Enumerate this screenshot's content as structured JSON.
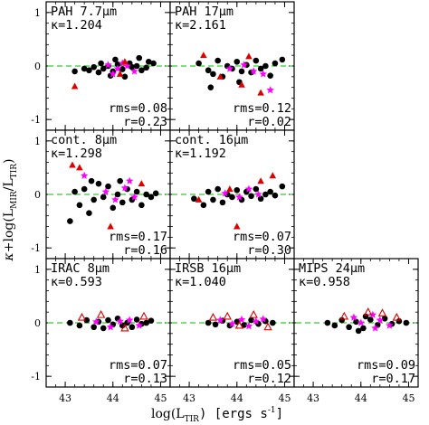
{
  "figure": {
    "ylabel_parts": {
      "kappa": "κ",
      "plus_log": "+log(L",
      "mir_sub": "MIR",
      "slash": "/L",
      "tir_sub": "TIR",
      "close": ")"
    },
    "xlabel_parts": {
      "log": "log(L",
      "tir_sub": "TIR",
      "units": ") [ergs s",
      "sup": "-1",
      "close": "]"
    }
  },
  "chart_data": [
    {
      "type": "scatter",
      "row": 0,
      "col": 0,
      "title": "PAH 7.7μm",
      "kappa_label": "κ=1.204",
      "rms_label": "rms=0.08",
      "r_label": "r=0.23",
      "xlim": [
        42.6,
        45.2
      ],
      "ylim": [
        -1.2,
        1.2
      ],
      "yticks": [
        1,
        0,
        -1
      ],
      "xticks": [
        43,
        44,
        45
      ],
      "reference_line": 0,
      "show_yticklabels": true,
      "show_xticklabels": false,
      "series": [
        {
          "name": "",
          "color": "#000000",
          "marker": "circle",
          "points": [
            [
              43.2,
              -0.1
            ],
            [
              43.4,
              -0.05
            ],
            [
              43.5,
              -0.08
            ],
            [
              43.6,
              -0.02
            ],
            [
              43.7,
              -0.12
            ],
            [
              43.8,
              -0.05
            ],
            [
              43.9,
              0.0
            ],
            [
              44.0,
              -0.1
            ],
            [
              44.1,
              0.03
            ],
            [
              44.2,
              -0.06
            ],
            [
              44.25,
              -0.2
            ],
            [
              44.35,
              0.05
            ],
            [
              44.4,
              -0.02
            ],
            [
              44.5,
              0.0
            ],
            [
              44.6,
              -0.08
            ],
            [
              44.7,
              -0.03
            ],
            [
              44.75,
              0.08
            ],
            [
              44.85,
              0.05
            ],
            [
              44.55,
              0.15
            ],
            [
              44.05,
              0.12
            ],
            [
              43.95,
              -0.18
            ],
            [
              43.75,
              0.05
            ]
          ]
        },
        {
          "name": "",
          "color": "#ff00ff",
          "marker": "star",
          "points": [
            [
              43.9,
              0.02
            ],
            [
              44.1,
              -0.05
            ],
            [
              44.3,
              0.0
            ],
            [
              44.2,
              0.05
            ],
            [
              44.45,
              -0.1
            ],
            [
              44.0,
              -0.15
            ]
          ]
        },
        {
          "name": "",
          "color": "#dd0000",
          "marker": "triangle",
          "points": [
            [
              43.2,
              -0.38
            ],
            [
              44.15,
              -0.15
            ],
            [
              44.25,
              0.08
            ]
          ]
        }
      ]
    },
    {
      "type": "scatter",
      "row": 0,
      "col": 1,
      "title": "PAH 17μm",
      "kappa_label": "κ=2.161",
      "rms_label": "rms=0.12",
      "r_label": "r=0.02",
      "xlim": [
        42.6,
        45.2
      ],
      "ylim": [
        -1.2,
        1.2
      ],
      "yticks": [
        1,
        0,
        -1
      ],
      "xticks": [
        43,
        44,
        45
      ],
      "reference_line": 0,
      "show_yticklabels": false,
      "show_xticklabels": false,
      "series": [
        {
          "name": "",
          "color": "#000000",
          "marker": "circle",
          "points": [
            [
              43.2,
              0.05
            ],
            [
              43.4,
              -0.08
            ],
            [
              43.5,
              -0.15
            ],
            [
              43.6,
              0.1
            ],
            [
              43.7,
              -0.2
            ],
            [
              43.8,
              0.0
            ],
            [
              43.9,
              -0.05
            ],
            [
              44.0,
              0.08
            ],
            [
              44.1,
              -0.1
            ],
            [
              44.2,
              0.02
            ],
            [
              44.3,
              -0.12
            ],
            [
              44.4,
              0.1
            ],
            [
              44.5,
              -0.05
            ],
            [
              44.6,
              0.0
            ],
            [
              44.7,
              -0.18
            ],
            [
              44.8,
              0.05
            ],
            [
              44.95,
              0.12
            ],
            [
              43.45,
              -0.4
            ],
            [
              44.05,
              -0.3
            ]
          ]
        },
        {
          "name": "",
          "color": "#ff00ff",
          "marker": "star",
          "points": [
            [
              43.85,
              -0.05
            ],
            [
              44.15,
              0.02
            ],
            [
              44.35,
              -0.1
            ],
            [
              44.55,
              -0.15
            ],
            [
              44.7,
              -0.45
            ]
          ]
        },
        {
          "name": "",
          "color": "#dd0000",
          "marker": "triangle",
          "points": [
            [
              43.3,
              0.2
            ],
            [
              43.65,
              -0.2
            ],
            [
              44.25,
              0.18
            ],
            [
              44.5,
              -0.5
            ],
            [
              44.1,
              -0.35
            ]
          ]
        }
      ]
    },
    {
      "type": "scatter",
      "row": 1,
      "col": 0,
      "title": "cont. 8μm",
      "kappa_label": "κ=1.298",
      "rms_label": "rms=0.17",
      "r_label": "r=0.16",
      "xlim": [
        42.6,
        45.2
      ],
      "ylim": [
        -1.2,
        1.2
      ],
      "yticks": [
        1,
        0,
        -1
      ],
      "xticks": [
        43,
        44,
        45
      ],
      "reference_line": 0,
      "show_yticklabels": true,
      "show_xticklabels": false,
      "series": [
        {
          "name": "",
          "color": "#000000",
          "marker": "circle",
          "points": [
            [
              43.1,
              -0.5
            ],
            [
              43.2,
              0.05
            ],
            [
              43.3,
              -0.2
            ],
            [
              43.4,
              0.1
            ],
            [
              43.5,
              -0.35
            ],
            [
              43.6,
              -0.1
            ],
            [
              43.7,
              0.2
            ],
            [
              43.8,
              -0.05
            ],
            [
              43.9,
              0.15
            ],
            [
              44.0,
              -0.25
            ],
            [
              44.1,
              0.0
            ],
            [
              44.2,
              -0.15
            ],
            [
              44.3,
              0.1
            ],
            [
              44.4,
              -0.1
            ],
            [
              44.5,
              0.05
            ],
            [
              44.6,
              -0.2
            ],
            [
              44.7,
              0.0
            ],
            [
              44.8,
              -0.05
            ],
            [
              44.9,
              0.02
            ],
            [
              43.55,
              0.25
            ],
            [
              44.15,
              0.25
            ]
          ]
        },
        {
          "name": "",
          "color": "#ff00ff",
          "marker": "star",
          "points": [
            [
              43.4,
              0.35
            ],
            [
              43.85,
              0.05
            ],
            [
              44.05,
              -0.1
            ],
            [
              44.25,
              0.12
            ],
            [
              44.45,
              -0.05
            ],
            [
              44.35,
              0.25
            ]
          ]
        },
        {
          "name": "",
          "color": "#dd0000",
          "marker": "triangle",
          "points": [
            [
              43.15,
              0.55
            ],
            [
              43.3,
              0.5
            ],
            [
              44.6,
              0.2
            ],
            [
              43.95,
              -0.6
            ]
          ]
        }
      ]
    },
    {
      "type": "scatter",
      "row": 1,
      "col": 1,
      "title": "cont. 16μm",
      "kappa_label": "κ=1.192",
      "rms_label": "rms=0.07",
      "r_label": "r=0.30",
      "xlim": [
        42.6,
        45.2
      ],
      "ylim": [
        -1.2,
        1.2
      ],
      "yticks": [
        1,
        0,
        -1
      ],
      "xticks": [
        43,
        44,
        45
      ],
      "reference_line": 0,
      "show_yticklabels": false,
      "show_xticklabels": false,
      "series": [
        {
          "name": "",
          "color": "#000000",
          "marker": "circle",
          "points": [
            [
              43.1,
              -0.08
            ],
            [
              43.3,
              -0.2
            ],
            [
              43.4,
              0.05
            ],
            [
              43.5,
              -0.1
            ],
            [
              43.6,
              0.1
            ],
            [
              43.7,
              -0.15
            ],
            [
              43.8,
              0.0
            ],
            [
              43.9,
              -0.05
            ],
            [
              44.0,
              0.08
            ],
            [
              44.1,
              -0.1
            ],
            [
              44.2,
              0.05
            ],
            [
              44.3,
              -0.03
            ],
            [
              44.4,
              0.1
            ],
            [
              44.5,
              -0.08
            ],
            [
              44.6,
              0.0
            ],
            [
              44.7,
              0.05
            ],
            [
              44.8,
              -0.02
            ],
            [
              44.95,
              0.15
            ]
          ]
        },
        {
          "name": "",
          "color": "#ff00ff",
          "marker": "star",
          "points": [
            [
              43.75,
              0.02
            ],
            [
              44.05,
              -0.05
            ],
            [
              44.25,
              0.1
            ],
            [
              44.45,
              0.0
            ]
          ]
        },
        {
          "name": "",
          "color": "#dd0000",
          "marker": "triangle",
          "points": [
            [
              43.2,
              -0.1
            ],
            [
              43.85,
              0.1
            ],
            [
              44.0,
              -0.6
            ],
            [
              44.5,
              0.25
            ],
            [
              44.75,
              0.35
            ]
          ]
        }
      ]
    },
    {
      "type": "scatter",
      "row": 2,
      "col": 0,
      "title": "IRAC 8μm",
      "kappa_label": "κ=0.593",
      "rms_label": "rms=0.07",
      "r_label": "r=0.13",
      "xlim": [
        42.6,
        45.2
      ],
      "ylim": [
        -1.2,
        1.2
      ],
      "yticks": [
        1,
        0,
        -1
      ],
      "xticks": [
        43,
        44,
        45
      ],
      "reference_line": 0,
      "show_yticklabels": true,
      "show_xticklabels": true,
      "series": [
        {
          "name": "",
          "color": "#000000",
          "marker": "circle",
          "points": [
            [
              43.1,
              0.0
            ],
            [
              43.3,
              -0.05
            ],
            [
              43.45,
              0.05
            ],
            [
              43.6,
              -0.08
            ],
            [
              43.7,
              0.02
            ],
            [
              43.8,
              -0.1
            ],
            [
              43.9,
              0.05
            ],
            [
              44.0,
              -0.03
            ],
            [
              44.1,
              0.08
            ],
            [
              44.2,
              -0.05
            ],
            [
              44.3,
              0.0
            ],
            [
              44.4,
              -0.08
            ],
            [
              44.5,
              0.06
            ],
            [
              44.6,
              -0.02
            ],
            [
              44.7,
              0.0
            ],
            [
              44.8,
              0.04
            ]
          ]
        },
        {
          "name": "",
          "color": "#ff00ff",
          "marker": "star",
          "points": [
            [
              43.65,
              0.02
            ],
            [
              43.95,
              -0.08
            ],
            [
              44.15,
              0.03
            ],
            [
              44.35,
              0.05
            ],
            [
              44.55,
              -0.05
            ]
          ]
        },
        {
          "name": "",
          "color": "#dd0000",
          "marker": "triangle-open",
          "points": [
            [
              43.35,
              0.1
            ],
            [
              43.75,
              0.15
            ],
            [
              44.25,
              -0.1
            ],
            [
              44.65,
              0.12
            ]
          ]
        }
      ]
    },
    {
      "type": "scatter",
      "row": 2,
      "col": 1,
      "title": "IRSB 16μm",
      "kappa_label": "κ=1.040",
      "rms_label": "rms=0.05",
      "r_label": "r=0.12",
      "xlim": [
        42.6,
        45.2
      ],
      "ylim": [
        -1.2,
        1.2
      ],
      "yticks": [
        1,
        0,
        -1
      ],
      "xticks": [
        43,
        44,
        45
      ],
      "reference_line": 0,
      "show_yticklabels": false,
      "show_xticklabels": true,
      "series": [
        {
          "name": "",
          "color": "#000000",
          "marker": "circle",
          "points": [
            [
              43.4,
              0.0
            ],
            [
              43.55,
              -0.03
            ],
            [
              43.7,
              0.04
            ],
            [
              43.85,
              -0.05
            ],
            [
              44.0,
              0.02
            ],
            [
              44.15,
              -0.04
            ],
            [
              44.3,
              0.05
            ],
            [
              44.45,
              -0.02
            ],
            [
              44.6,
              0.03
            ],
            [
              44.75,
              0.0
            ]
          ]
        },
        {
          "name": "",
          "color": "#ff00ff",
          "marker": "star",
          "points": [
            [
              43.65,
              0.05
            ],
            [
              43.9,
              -0.02
            ],
            [
              44.1,
              0.06
            ],
            [
              44.25,
              -0.06
            ],
            [
              44.4,
              0.03
            ],
            [
              44.55,
              0.07
            ]
          ]
        },
        {
          "name": "",
          "color": "#dd0000",
          "marker": "triangle-open",
          "points": [
            [
              43.5,
              0.1
            ],
            [
              43.8,
              0.12
            ],
            [
              44.05,
              -0.05
            ],
            [
              44.35,
              0.15
            ],
            [
              44.65,
              -0.08
            ]
          ]
        }
      ]
    },
    {
      "type": "scatter",
      "row": 2,
      "col": 2,
      "title": "MIPS 24μm",
      "kappa_label": "κ=0.958",
      "rms_label": "rms=0.09",
      "r_label": "r=0.17",
      "xlim": [
        42.6,
        45.2
      ],
      "ylim": [
        -1.2,
        1.2
      ],
      "yticks": [
        1,
        0,
        -1
      ],
      "xticks": [
        43,
        44,
        45
      ],
      "reference_line": 0,
      "show_yticklabels": false,
      "show_xticklabels": true,
      "series": [
        {
          "name": "",
          "color": "#000000",
          "marker": "circle",
          "points": [
            [
              43.3,
              0.0
            ],
            [
              43.45,
              -0.05
            ],
            [
              43.6,
              0.05
            ],
            [
              43.75,
              -0.08
            ],
            [
              43.9,
              0.02
            ],
            [
              44.05,
              -0.1
            ],
            [
              44.2,
              0.06
            ],
            [
              44.35,
              -0.04
            ],
            [
              44.5,
              0.08
            ],
            [
              44.65,
              -0.02
            ],
            [
              44.8,
              0.03
            ],
            [
              44.95,
              0.0
            ],
            [
              44.1,
              0.12
            ],
            [
              43.95,
              -0.15
            ]
          ]
        },
        {
          "name": "",
          "color": "#ff00ff",
          "marker": "star",
          "points": [
            [
              43.85,
              0.1
            ],
            [
              44.0,
              0.0
            ],
            [
              44.25,
              0.15
            ],
            [
              44.4,
              0.05
            ],
            [
              44.6,
              -0.05
            ],
            [
              44.3,
              -0.1
            ]
          ]
        },
        {
          "name": "",
          "color": "#dd0000",
          "marker": "triangle-open",
          "points": [
            [
              43.65,
              0.12
            ],
            [
              44.15,
              0.2
            ],
            [
              44.45,
              0.18
            ],
            [
              44.75,
              0.1
            ]
          ]
        }
      ]
    }
  ]
}
